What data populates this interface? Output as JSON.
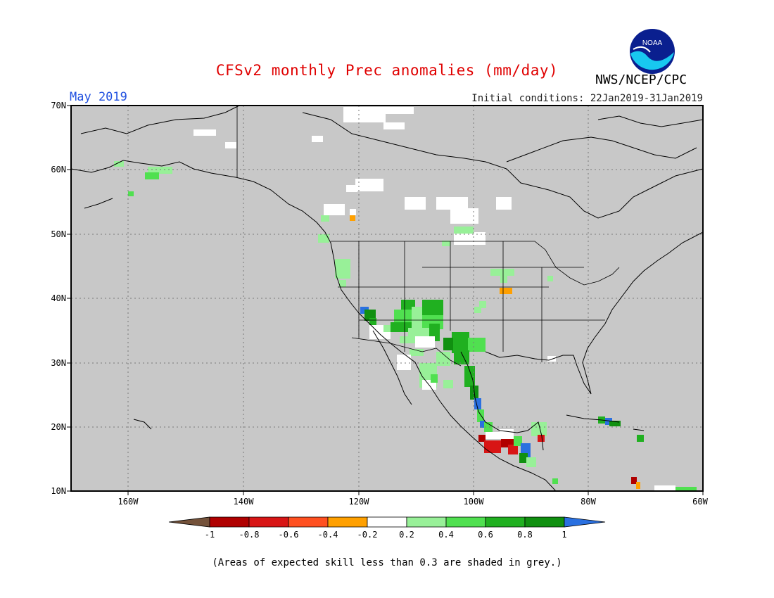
{
  "header": {
    "title": "CFSv2 monthly Prec anomalies (mm/day)",
    "target_month": "May 2019",
    "initial_conditions": "Initial conditions: 22Jan2019-31Jan2019",
    "organization": "NWS/NCEP/CPC",
    "logo_text": "NOAA"
  },
  "map": {
    "lat_labels": [
      "70N",
      "60N",
      "50N",
      "40N",
      "30N",
      "20N",
      "10N"
    ],
    "lon_labels": [
      "160W",
      "140W",
      "120W",
      "100W",
      "80W",
      "60W"
    ],
    "colors": {
      "skill_mask": "#c8c8c8",
      "neutral": "#ffffff",
      "coast": "#000000"
    }
  },
  "legend": {
    "tick_labels": [
      "-1",
      "-0.8",
      "-0.6",
      "-0.4",
      "-0.2",
      "0.2",
      "0.4",
      "0.6",
      "0.8",
      "1"
    ],
    "colors": [
      "#74523a",
      "#b00000",
      "#d81515",
      "#ff5020",
      "#ffa000",
      "#ffffff",
      "#98f098",
      "#50e050",
      "#20b020",
      "#109010",
      "#2a70e0"
    ],
    "note": "(Areas of expected skill less than 0.3 are shaded in grey.)"
  }
}
